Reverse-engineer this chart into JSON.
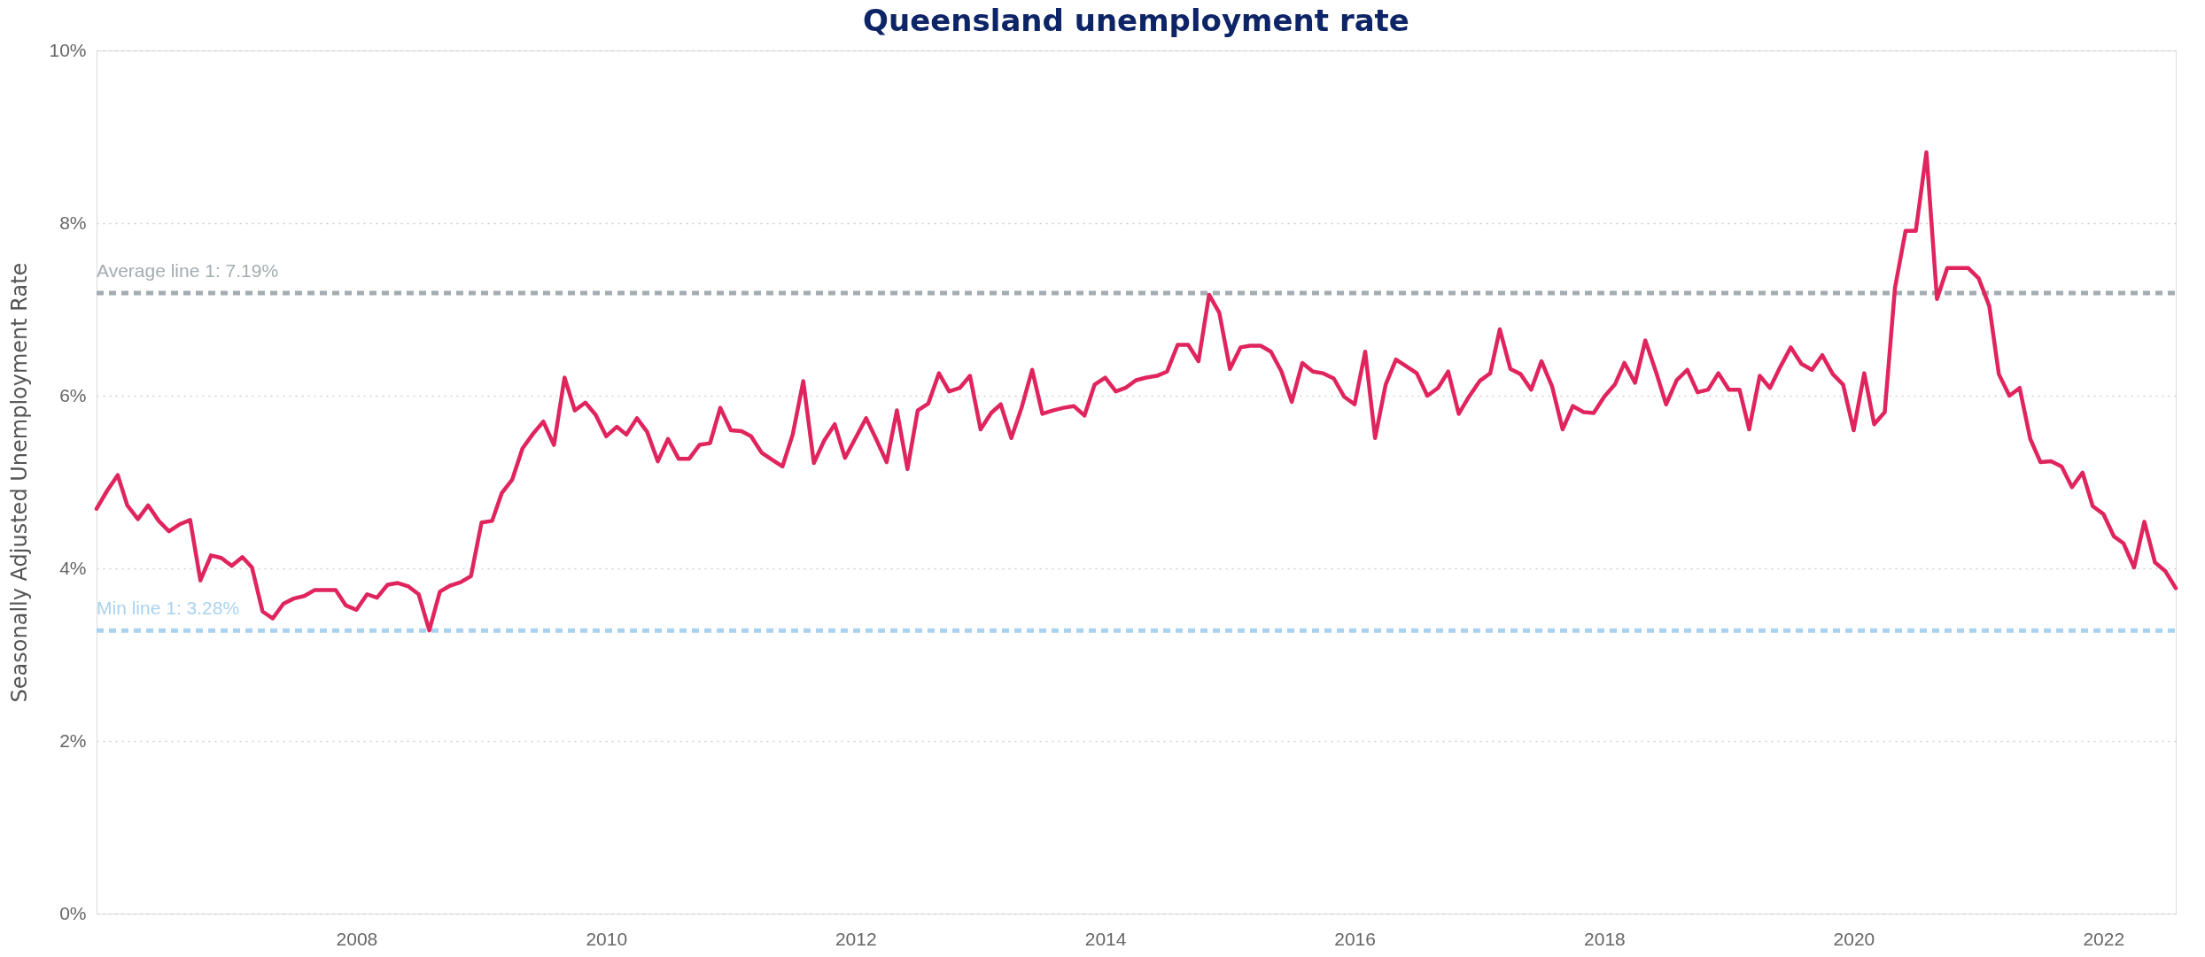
{
  "chart_data": {
    "type": "line",
    "title": "Queensland unemployment rate",
    "ylabel": "Seasonally Adjusted Unemployment Rate",
    "x": [
      "2005-12",
      "2006-01",
      "2006-02",
      "2006-03",
      "2006-04",
      "2006-05",
      "2006-06",
      "2006-07",
      "2006-08",
      "2006-09",
      "2006-10",
      "2006-11",
      "2006-12",
      "2007-01",
      "2007-02",
      "2007-03",
      "2007-04",
      "2007-05",
      "2007-06",
      "2007-07",
      "2007-08",
      "2007-09",
      "2007-10",
      "2007-11",
      "2007-12",
      "2008-01",
      "2008-02",
      "2008-03",
      "2008-04",
      "2008-05",
      "2008-06",
      "2008-07",
      "2008-08",
      "2008-09",
      "2008-10",
      "2008-11",
      "2008-12",
      "2009-01",
      "2009-02",
      "2009-03",
      "2009-04",
      "2009-05",
      "2009-06",
      "2009-07",
      "2009-08",
      "2009-09",
      "2009-10",
      "2009-11",
      "2009-12",
      "2010-01",
      "2010-02",
      "2010-03",
      "2010-04",
      "2010-05",
      "2010-06",
      "2010-07",
      "2010-08",
      "2010-09",
      "2010-10",
      "2010-11",
      "2010-12",
      "2011-01",
      "2011-02",
      "2011-03",
      "2011-04",
      "2011-05",
      "2011-06",
      "2011-07",
      "2011-08",
      "2011-09",
      "2011-10",
      "2011-11",
      "2011-12",
      "2012-01",
      "2012-02",
      "2012-03",
      "2012-04",
      "2012-05",
      "2012-06",
      "2012-07",
      "2012-08",
      "2012-09",
      "2012-10",
      "2012-11",
      "2012-12",
      "2013-01",
      "2013-02",
      "2013-03",
      "2013-04",
      "2013-05",
      "2013-06",
      "2013-07",
      "2013-08",
      "2013-09",
      "2013-10",
      "2013-11",
      "2013-12",
      "2014-01",
      "2014-02",
      "2014-03",
      "2014-04",
      "2014-05",
      "2014-06",
      "2014-07",
      "2014-08",
      "2014-09",
      "2014-10",
      "2014-11",
      "2014-12",
      "2015-01",
      "2015-02",
      "2015-03",
      "2015-04",
      "2015-05",
      "2015-06",
      "2015-07",
      "2015-08",
      "2015-09",
      "2015-10",
      "2015-11",
      "2015-12",
      "2016-01",
      "2016-02",
      "2016-03",
      "2016-04",
      "2016-05",
      "2016-06",
      "2016-07",
      "2016-08",
      "2016-09",
      "2016-10",
      "2016-11",
      "2016-12",
      "2017-01",
      "2017-02",
      "2017-03",
      "2017-04",
      "2017-05",
      "2017-06",
      "2017-07",
      "2017-08",
      "2017-09",
      "2017-10",
      "2017-11",
      "2017-12",
      "2018-01",
      "2018-02",
      "2018-03",
      "2018-04",
      "2018-05",
      "2018-06",
      "2018-07",
      "2018-08",
      "2018-09",
      "2018-10",
      "2018-11",
      "2018-12",
      "2019-01",
      "2019-02",
      "2019-03",
      "2019-04",
      "2019-05",
      "2019-06",
      "2019-07",
      "2019-08",
      "2019-09",
      "2019-10",
      "2019-11",
      "2019-12",
      "2020-01",
      "2020-02",
      "2020-03",
      "2020-04",
      "2020-05",
      "2020-06",
      "2020-07",
      "2020-08",
      "2020-09",
      "2020-10",
      "2020-11",
      "2020-12",
      "2021-01",
      "2021-02",
      "2021-03",
      "2021-04",
      "2021-05",
      "2021-06",
      "2021-07",
      "2021-08",
      "2021-09",
      "2021-10",
      "2021-11",
      "2021-12",
      "2022-01",
      "2022-02",
      "2022-03",
      "2022-04",
      "2022-05",
      "2022-06",
      "2022-07",
      "2022-08"
    ],
    "series": [
      {
        "color": "#e0245e",
        "values": [
          4.69,
          4.9,
          5.08,
          4.73,
          4.57,
          4.73,
          4.55,
          4.43,
          4.51,
          4.56,
          3.86,
          4.15,
          4.12,
          4.03,
          4.13,
          4.01,
          3.5,
          3.42,
          3.59,
          3.65,
          3.68,
          3.75,
          3.75,
          3.75,
          3.57,
          3.52,
          3.7,
          3.66,
          3.81,
          3.83,
          3.79,
          3.7,
          3.28,
          3.73,
          3.8,
          3.84,
          3.91,
          4.53,
          4.55,
          4.87,
          5.03,
          5.39,
          5.56,
          5.7,
          5.43,
          6.21,
          5.83,
          5.92,
          5.78,
          5.53,
          5.64,
          5.55,
          5.74,
          5.58,
          5.24,
          5.5,
          5.27,
          5.27,
          5.43,
          5.45,
          5.86,
          5.6,
          5.59,
          5.53,
          5.34,
          5.26,
          5.18,
          5.55,
          6.17,
          5.22,
          5.48,
          5.67,
          5.28,
          5.51,
          5.74,
          5.5,
          5.23,
          5.83,
          5.15,
          5.83,
          5.91,
          6.26,
          6.05,
          6.09,
          6.23,
          5.61,
          5.8,
          5.9,
          5.51,
          5.86,
          6.3,
          5.79,
          5.83,
          5.86,
          5.88,
          5.77,
          6.13,
          6.21,
          6.05,
          6.09,
          6.18,
          6.21,
          6.23,
          6.28,
          6.59,
          6.59,
          6.4,
          7.17,
          6.96,
          6.31,
          6.56,
          6.58,
          6.58,
          6.51,
          6.28,
          5.93,
          6.38,
          6.28,
          6.26,
          6.2,
          5.99,
          5.9,
          6.51,
          5.51,
          6.13,
          6.42,
          6.34,
          6.26,
          6.0,
          6.09,
          6.28,
          5.79,
          5.99,
          6.17,
          6.26,
          6.77,
          6.31,
          6.25,
          6.07,
          6.4,
          6.11,
          5.61,
          5.88,
          5.81,
          5.8,
          5.99,
          6.13,
          6.38,
          6.15,
          6.64,
          6.28,
          5.9,
          6.18,
          6.3,
          6.04,
          6.07,
          6.26,
          6.07,
          6.07,
          5.61,
          6.23,
          6.09,
          6.34,
          6.56,
          6.37,
          6.3,
          6.47,
          6.25,
          6.13,
          5.6,
          6.26,
          5.67,
          5.81,
          7.25,
          7.91,
          7.91,
          8.82,
          7.12,
          7.48,
          7.48,
          7.48,
          7.36,
          7.04,
          6.25,
          6.0,
          6.09,
          5.5,
          5.23,
          5.24,
          5.18,
          4.94,
          5.11,
          4.72,
          4.63,
          4.37,
          4.29,
          4.01,
          4.54,
          4.07,
          3.97,
          3.77
        ]
      }
    ],
    "xlim": [
      "2005-12",
      "2022-08"
    ],
    "xticks": [
      {
        "value": "2008",
        "label": "2008"
      },
      {
        "value": "2010",
        "label": "2010"
      },
      {
        "value": "2012",
        "label": "2012"
      },
      {
        "value": "2014",
        "label": "2014"
      },
      {
        "value": "2016",
        "label": "2016"
      },
      {
        "value": "2018",
        "label": "2018"
      },
      {
        "value": "2020",
        "label": "2020"
      },
      {
        "value": "2022",
        "label": "2022"
      }
    ],
    "ylim": [
      0,
      10
    ],
    "yticks": [
      {
        "value": 0,
        "label": "0%"
      },
      {
        "value": 2,
        "label": "2%"
      },
      {
        "value": 4,
        "label": "4%"
      },
      {
        "value": 6,
        "label": "6%"
      },
      {
        "value": 8,
        "label": "8%"
      },
      {
        "value": 10,
        "label": "10%"
      }
    ],
    "ref_lines": [
      {
        "axis": "y",
        "value": 7.19,
        "label": "Average line 1: 7.19%",
        "color": "#a3acb0",
        "line_style": "dashed"
      },
      {
        "axis": "y",
        "value": 3.28,
        "label": "Min line 1: 3.28%",
        "color": "#a9d2f0",
        "line_style": "dashed"
      }
    ],
    "grid": "y",
    "line_style": "solid",
    "marker": "none",
    "legend": false
  }
}
